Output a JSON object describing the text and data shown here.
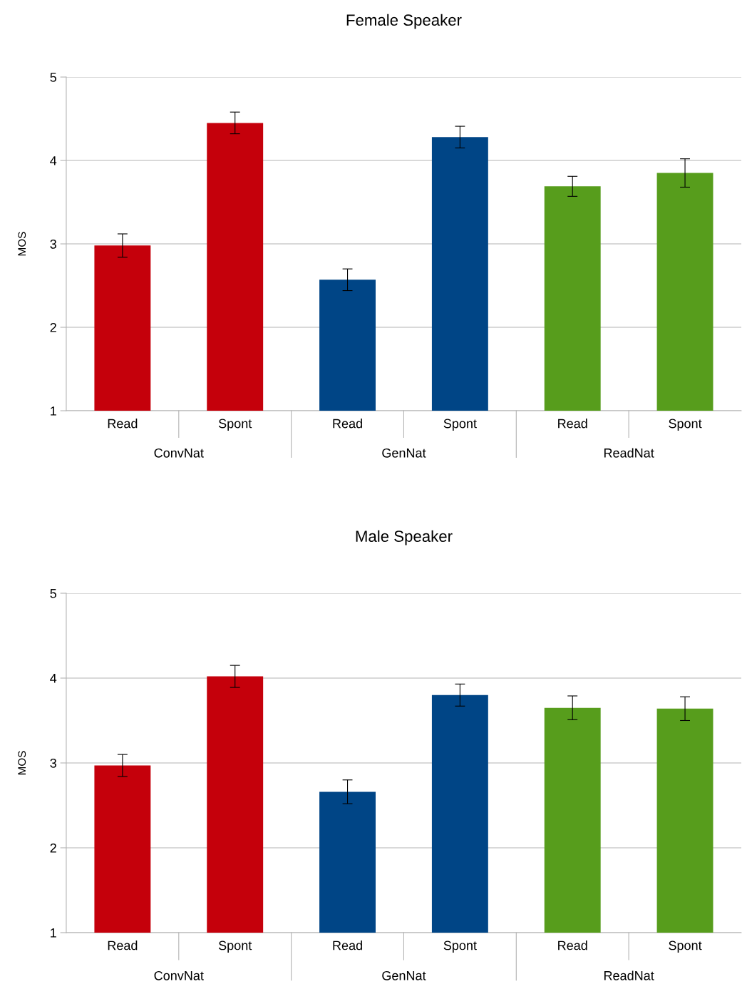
{
  "chart_data": [
    {
      "type": "bar",
      "title": "Female Speaker",
      "ylabel": "MOS",
      "categories": [
        "Read",
        "Spont",
        "Read",
        "Spont",
        "Read",
        "Spont"
      ],
      "values": [
        2.98,
        4.45,
        2.57,
        4.28,
        3.69,
        3.85
      ],
      "errors": [
        0.14,
        0.13,
        0.13,
        0.13,
        0.12,
        0.17
      ],
      "colors": [
        "#c5000b",
        "#c5000b",
        "#004586",
        "#004586",
        "#579d1c",
        "#579d1c"
      ],
      "annotations": [
        "ConvNat",
        "GenNat",
        "ReadNat"
      ],
      "ylim": [
        1,
        5
      ],
      "yticks": [
        1,
        2,
        3,
        4,
        5
      ],
      "grid": "y",
      "legend": false
    },
    {
      "type": "bar",
      "title": "Male Speaker",
      "ylabel": "MOS",
      "categories": [
        "Read",
        "Spont",
        "Read",
        "Spont",
        "Read",
        "Spont"
      ],
      "values": [
        2.97,
        4.02,
        2.66,
        3.8,
        3.65,
        3.64
      ],
      "errors": [
        0.13,
        0.13,
        0.14,
        0.13,
        0.14,
        0.14
      ],
      "colors": [
        "#c5000b",
        "#c5000b",
        "#004586",
        "#004586",
        "#579d1c",
        "#579d1c"
      ],
      "annotations": [
        "ConvNat",
        "GenNat",
        "ReadNat"
      ],
      "ylim": [
        1,
        5
      ],
      "yticks": [
        1,
        2,
        3,
        4,
        5
      ],
      "grid": "y",
      "legend": false
    }
  ]
}
